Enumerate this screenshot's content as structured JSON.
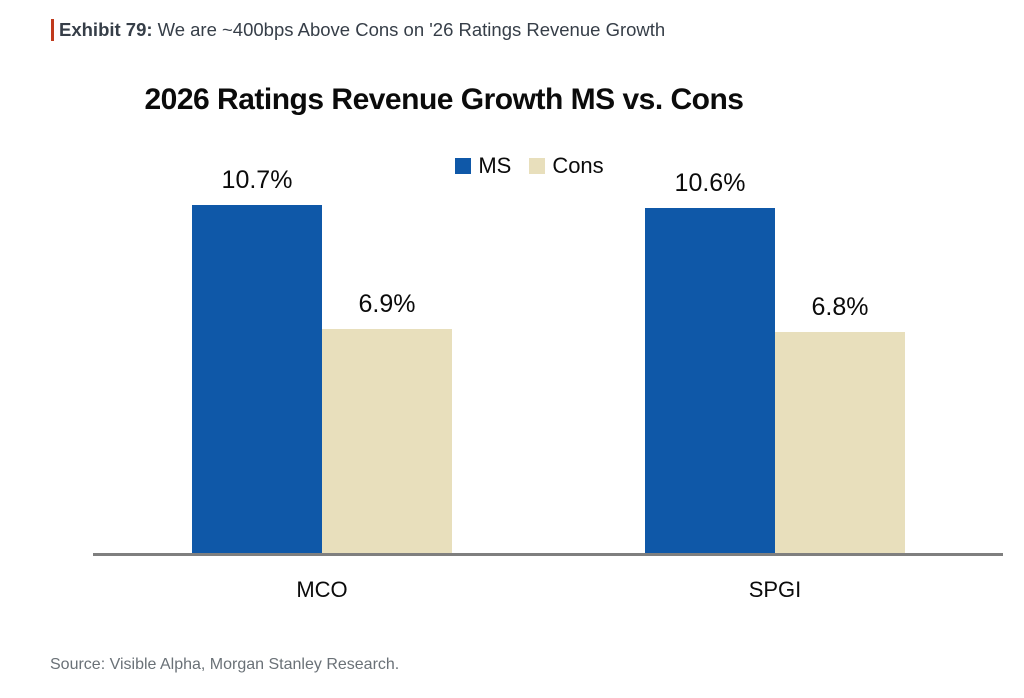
{
  "exhibit": {
    "label": "Exhibit 79:",
    "caption": "We are ~400bps Above Cons on '26 Ratings Revenue Growth",
    "accent_color": "#c03a1c"
  },
  "chart_data": {
    "type": "bar",
    "title": "2026 Ratings Revenue Growth MS vs. Cons",
    "categories": [
      "MCO",
      "SPGI"
    ],
    "series": [
      {
        "name": "MS",
        "color": "#0f58a8",
        "values": [
          10.7,
          10.6
        ],
        "data_labels": [
          "10.7%",
          "10.6%"
        ]
      },
      {
        "name": "Cons",
        "color": "#e8dfbc",
        "values": [
          6.9,
          6.8
        ],
        "data_labels": [
          "6.9%",
          "6.8%"
        ]
      }
    ],
    "xlabel": "",
    "ylabel": "",
    "ylim": [
      0,
      12.7
    ],
    "grid": false,
    "legend_position": "top-center",
    "axis_line_color": "#7f7f7f",
    "text_color": "#0b0b0b"
  },
  "footer": {
    "source": "Source: Visible Alpha, Morgan Stanley Research."
  }
}
